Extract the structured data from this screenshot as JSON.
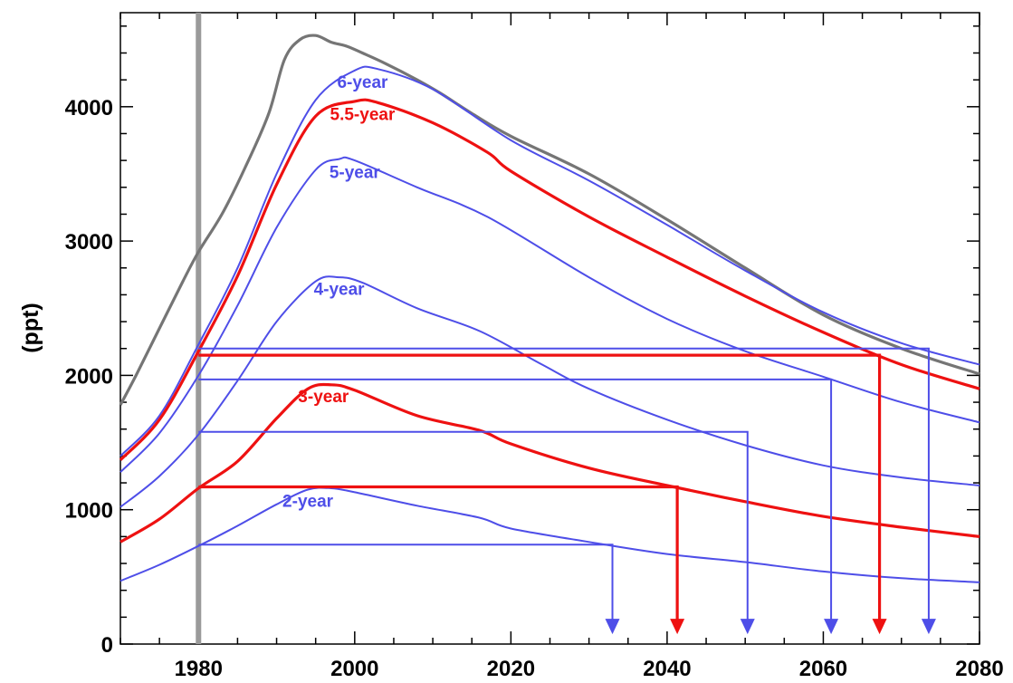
{
  "colors": {
    "total": "#757575",
    "blue": "#4e4ee8",
    "red": "#ee1111",
    "marker": "#9a9a9a",
    "axis": "#000000"
  },
  "chart_data": {
    "type": "line",
    "title": "",
    "xlabel": "",
    "ylabel": "(ppt)",
    "xlim": [
      1970,
      2080
    ],
    "ylim": [
      0,
      4700
    ],
    "grid": false,
    "x_ticks": [
      1980,
      2000,
      2020,
      2040,
      2060,
      2080
    ],
    "y_ticks": [
      0,
      1000,
      2000,
      3000,
      4000
    ],
    "x_tick_labels": [
      "1980",
      "2000",
      "2020",
      "2040",
      "2060",
      "2080"
    ],
    "y_tick_labels": [
      "0",
      "1000",
      "2000",
      "3000",
      "4000"
    ],
    "vertical_marker": {
      "x": 1980
    },
    "series": [
      {
        "key": "total",
        "color": "total",
        "width": 3.2,
        "points": [
          [
            1970,
            1780
          ],
          [
            1972,
            2000
          ],
          [
            1975,
            2350
          ],
          [
            1978,
            2700
          ],
          [
            1980,
            2920
          ],
          [
            1983,
            3200
          ],
          [
            1986,
            3550
          ],
          [
            1989,
            3950
          ],
          [
            1991,
            4350
          ],
          [
            1993,
            4500
          ],
          [
            1995,
            4530
          ],
          [
            1997,
            4480
          ],
          [
            1999,
            4450
          ],
          [
            2001,
            4400
          ],
          [
            2004,
            4320
          ],
          [
            2008,
            4200
          ],
          [
            2011,
            4100
          ],
          [
            2015,
            3950
          ],
          [
            2020,
            3780
          ],
          [
            2030,
            3500
          ],
          [
            2040,
            3160
          ],
          [
            2050,
            2800
          ],
          [
            2060,
            2450
          ],
          [
            2070,
            2200
          ],
          [
            2080,
            2010
          ]
        ]
      },
      {
        "key": "yr6",
        "label": "6-year",
        "label_at": [
          2001,
          4140
        ],
        "color": "blue",
        "width": 2,
        "points": [
          [
            1970,
            1400
          ],
          [
            1975,
            1700
          ],
          [
            1980,
            2230
          ],
          [
            1985,
            2800
          ],
          [
            1990,
            3500
          ],
          [
            1995,
            4050
          ],
          [
            2000,
            4270
          ],
          [
            2003,
            4280
          ],
          [
            2010,
            4130
          ],
          [
            2020,
            3750
          ],
          [
            2030,
            3450
          ],
          [
            2040,
            3120
          ],
          [
            2050,
            2780
          ],
          [
            2060,
            2470
          ],
          [
            2070,
            2240
          ],
          [
            2080,
            2080
          ]
        ]
      },
      {
        "key": "yr55",
        "label": "5.5-year",
        "label_at": [
          2001,
          3900
        ],
        "color": "red",
        "width": 3.2,
        "points": [
          [
            1970,
            1370
          ],
          [
            1975,
            1670
          ],
          [
            1980,
            2180
          ],
          [
            1985,
            2740
          ],
          [
            1990,
            3420
          ],
          [
            1995,
            3930
          ],
          [
            2000,
            4040
          ],
          [
            2003,
            4030
          ],
          [
            2010,
            3880
          ],
          [
            2017,
            3660
          ],
          [
            2020,
            3520
          ],
          [
            2030,
            3180
          ],
          [
            2040,
            2880
          ],
          [
            2050,
            2590
          ],
          [
            2060,
            2320
          ],
          [
            2070,
            2080
          ],
          [
            2080,
            1900
          ]
        ]
      },
      {
        "key": "yr5",
        "label": "5-year",
        "label_at": [
          2000,
          3470
        ],
        "color": "blue",
        "width": 2,
        "points": [
          [
            1970,
            1280
          ],
          [
            1975,
            1570
          ],
          [
            1980,
            2000
          ],
          [
            1985,
            2520
          ],
          [
            1990,
            3100
          ],
          [
            1995,
            3530
          ],
          [
            1998,
            3610
          ],
          [
            2000,
            3600
          ],
          [
            2008,
            3400
          ],
          [
            2017,
            3180
          ],
          [
            2030,
            2730
          ],
          [
            2040,
            2420
          ],
          [
            2050,
            2180
          ],
          [
            2060,
            1990
          ],
          [
            2070,
            1800
          ],
          [
            2080,
            1650
          ]
        ]
      },
      {
        "key": "yr4",
        "label": "4-year",
        "label_at": [
          1998,
          2600
        ],
        "color": "blue",
        "width": 2,
        "points": [
          [
            1970,
            1020
          ],
          [
            1975,
            1250
          ],
          [
            1980,
            1560
          ],
          [
            1985,
            1960
          ],
          [
            1990,
            2400
          ],
          [
            1995,
            2700
          ],
          [
            1998,
            2730
          ],
          [
            2001,
            2690
          ],
          [
            2008,
            2500
          ],
          [
            2016,
            2330
          ],
          [
            2024,
            2080
          ],
          [
            2030,
            1900
          ],
          [
            2040,
            1670
          ],
          [
            2050,
            1480
          ],
          [
            2060,
            1330
          ],
          [
            2070,
            1240
          ],
          [
            2080,
            1180
          ]
        ]
      },
      {
        "key": "yr3",
        "label": "3-year",
        "label_at": [
          1996,
          1800
        ],
        "color": "red",
        "width": 3.2,
        "points": [
          [
            1970,
            760
          ],
          [
            1975,
            930
          ],
          [
            1980,
            1160
          ],
          [
            1985,
            1360
          ],
          [
            1990,
            1680
          ],
          [
            1994,
            1900
          ],
          [
            1997,
            1930
          ],
          [
            2000,
            1890
          ],
          [
            2008,
            1700
          ],
          [
            2016,
            1590
          ],
          [
            2020,
            1490
          ],
          [
            2030,
            1310
          ],
          [
            2040,
            1180
          ],
          [
            2050,
            1060
          ],
          [
            2060,
            950
          ],
          [
            2070,
            870
          ],
          [
            2080,
            800
          ]
        ]
      },
      {
        "key": "yr2",
        "label": "2-year",
        "label_at": [
          1994,
          1020
        ],
        "color": "blue",
        "width": 2,
        "points": [
          [
            1970,
            470
          ],
          [
            1975,
            590
          ],
          [
            1980,
            730
          ],
          [
            1985,
            880
          ],
          [
            1990,
            1040
          ],
          [
            1994,
            1150
          ],
          [
            1997,
            1160
          ],
          [
            2000,
            1130
          ],
          [
            2008,
            1030
          ],
          [
            2016,
            940
          ],
          [
            2020,
            860
          ],
          [
            2030,
            760
          ],
          [
            2040,
            670
          ],
          [
            2050,
            610
          ],
          [
            2060,
            540
          ],
          [
            2070,
            490
          ],
          [
            2080,
            460
          ]
        ]
      }
    ],
    "threshold_paths": [
      {
        "color": "blue",
        "width": 2,
        "y": 2200,
        "x_end": 2073.5,
        "arrow_y": 80
      },
      {
        "color": "red",
        "width": 3.2,
        "y": 2150,
        "x_end": 2067.2,
        "arrow_y": 80
      },
      {
        "color": "blue",
        "width": 2,
        "y": 1970,
        "x_end": 2061,
        "arrow_y": 80
      },
      {
        "color": "blue",
        "width": 2,
        "y": 1580,
        "x_end": 2050.3,
        "arrow_y": 80
      },
      {
        "color": "red",
        "width": 3.2,
        "y": 1170,
        "x_end": 2041.3,
        "arrow_y": 80
      },
      {
        "color": "blue",
        "width": 2,
        "y": 740,
        "x_end": 2033,
        "arrow_y": 80
      }
    ]
  }
}
